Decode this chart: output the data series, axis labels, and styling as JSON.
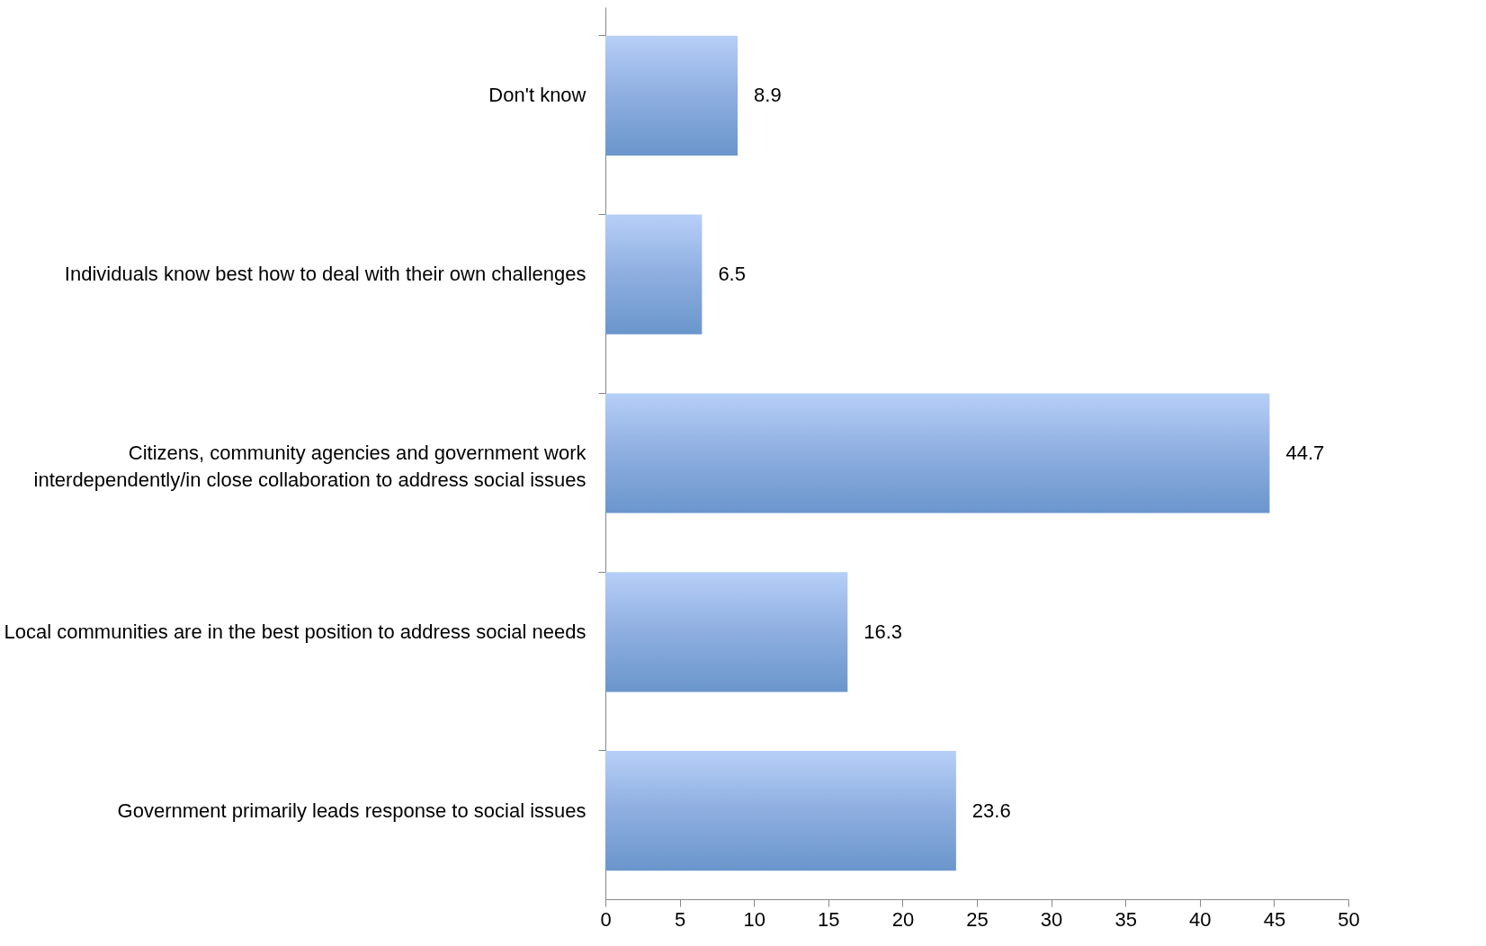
{
  "chart_data": {
    "type": "bar",
    "orientation": "horizontal",
    "categories": [
      "Don't know",
      "Individuals know best how to deal with their own challenges",
      "Citizens, community agencies and government work interdependently/in close collaboration to address social issues",
      "Local communities are in the best position to address social needs",
      "Government primarily leads response to social issues"
    ],
    "values": [
      8.9,
      6.5,
      44.7,
      16.3,
      23.6
    ],
    "color": "#8eaee0",
    "xlim": [
      0,
      50
    ],
    "xticks": [
      0,
      5,
      10,
      15,
      20,
      25,
      30,
      35,
      40,
      45,
      50
    ],
    "data_labels": true,
    "grid": false
  }
}
